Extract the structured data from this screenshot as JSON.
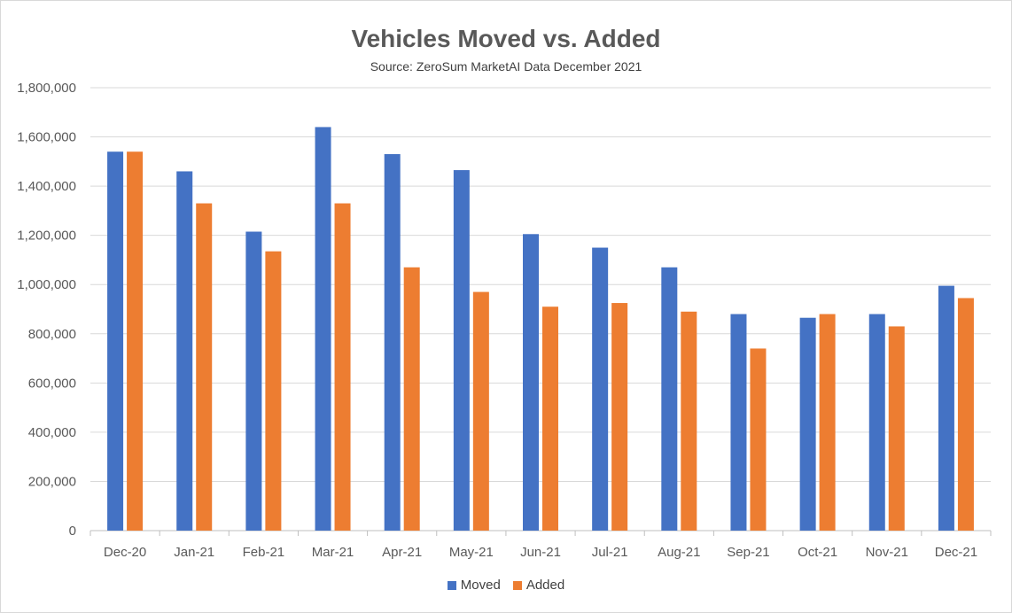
{
  "chart_data": {
    "type": "bar",
    "title": "Vehicles Moved vs. Added",
    "subtitle": "Source: ZeroSum MarketAI Data December 2021",
    "categories": [
      "Dec-20",
      "Jan-21",
      "Feb-21",
      "Mar-21",
      "Apr-21",
      "May-21",
      "Jun-21",
      "Jul-21",
      "Aug-21",
      "Sep-21",
      "Oct-21",
      "Nov-21",
      "Dec-21"
    ],
    "series": [
      {
        "name": "Moved",
        "color": "#4472c4",
        "values": [
          1540000,
          1460000,
          1215000,
          1640000,
          1530000,
          1465000,
          1205000,
          1150000,
          1070000,
          880000,
          865000,
          880000,
          995000
        ]
      },
      {
        "name": "Added",
        "color": "#ed7d31",
        "values": [
          1540000,
          1330000,
          1135000,
          1330000,
          1070000,
          970000,
          910000,
          925000,
          890000,
          740000,
          880000,
          830000,
          945000
        ]
      }
    ],
    "ylim": [
      0,
      1800000
    ],
    "yticks": [
      "0",
      "200,000",
      "400,000",
      "600,000",
      "800,000",
      "1,000,000",
      "1,200,000",
      "1,400,000",
      "1,600,000",
      "1,800,000"
    ],
    "grid": true,
    "legend_position": "bottom"
  }
}
